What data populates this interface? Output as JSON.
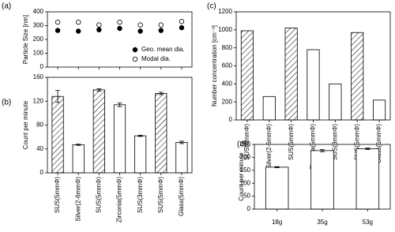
{
  "chart_data": [
    {
      "type": "scatter",
      "label": "(a)",
      "ylabel": "Particle Size [nm]",
      "ylim": [
        0,
        400
      ],
      "yticks": [
        0,
        100,
        200,
        300,
        400
      ],
      "categories": [
        null,
        null,
        null,
        null,
        null,
        null,
        null
      ],
      "legend": "lower right",
      "series": [
        {
          "name": "Geo. mean dia.",
          "color": "#000000",
          "filled": true,
          "values": [
            265,
            260,
            270,
            280,
            260,
            265,
            285
          ]
        },
        {
          "name": "Modal dia.",
          "color": "#000000",
          "filled": false,
          "values": [
            325,
            325,
            305,
            325,
            305,
            305,
            330
          ]
        }
      ]
    },
    {
      "type": "bar",
      "label": "(b)",
      "ylabel": "Count per minute",
      "ylim": [
        0,
        160
      ],
      "yticks": [
        0,
        40,
        80,
        120,
        160
      ],
      "categories": [
        "SUS(5mmΦ)",
        "Silver(2-6mmΦ)",
        "SUS(5mmΦ)",
        "Zirconia(5mmΦ)",
        "SUS(3mmΦ)",
        "SUS(5mmΦ)",
        "Glass(5mmΦ)"
      ],
      "color": "#ffffff",
      "hatched": [
        true,
        false,
        true,
        false,
        false,
        true,
        false
      ],
      "values": [
        128,
        47,
        139,
        114,
        62,
        133,
        51
      ],
      "errors": [
        10,
        1,
        2,
        3,
        1,
        2,
        2
      ]
    },
    {
      "type": "bar",
      "label": "(c)",
      "ylabel": "Number concentration [cm⁻³]",
      "ylim": [
        0,
        1200
      ],
      "yticks": [
        0,
        200,
        400,
        600,
        800,
        1000,
        1200
      ],
      "categories": [
        "SUS(5mmΦ)",
        "Silver(2-6mmΦ)",
        "SUS(5mmΦ)",
        "Zirconia(5mmΦ)",
        "SUS(3mmΦ)",
        "SUS(5mmΦ)",
        "Glass(5mmΦ)"
      ],
      "color": "#ffffff",
      "hatched": [
        true,
        false,
        true,
        false,
        false,
        true,
        false
      ],
      "values": [
        990,
        260,
        1020,
        780,
        400,
        970,
        220
      ]
    },
    {
      "type": "bar",
      "label": "(d)",
      "ylabel": "Count per minute",
      "ylim": [
        0,
        250
      ],
      "yticks": [
        0,
        50,
        100,
        150,
        200,
        250
      ],
      "categories": [
        "18g",
        "35g",
        "53g"
      ],
      "color": "#ffffff",
      "hatched": [
        false,
        false,
        false
      ],
      "values": [
        162,
        226,
        233
      ],
      "errors": [
        2,
        4,
        3
      ]
    }
  ]
}
